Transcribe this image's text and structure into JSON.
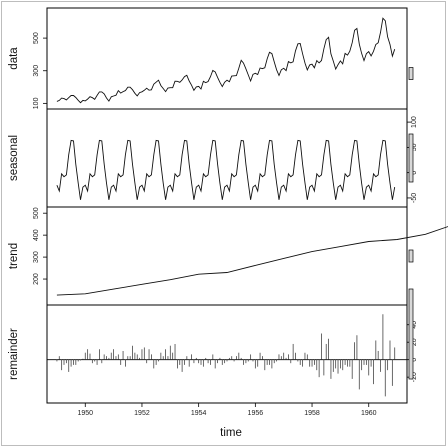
{
  "chart_data": {
    "type": "line",
    "title": "",
    "xlabel": "time",
    "x_ticks": [
      "1950",
      "1952",
      "1954",
      "1956",
      "1958",
      "1960"
    ],
    "x_range": [
      1949,
      1961
    ],
    "panels": [
      {
        "key": "data",
        "label": "data",
        "ticks": [
          "100",
          "300",
          "500"
        ],
        "tick_side": "left",
        "ylim": [
          90,
          660
        ],
        "start": 1949,
        "step_per_year": 12,
        "values": [
          112,
          118,
          132,
          129,
          121,
          135,
          148,
          148,
          136,
          119,
          104,
          118,
          115,
          126,
          141,
          135,
          125,
          149,
          170,
          170,
          158,
          133,
          114,
          140,
          145,
          150,
          178,
          163,
          172,
          178,
          199,
          199,
          184,
          162,
          146,
          166,
          171,
          180,
          193,
          181,
          183,
          218,
          230,
          242,
          209,
          191,
          172,
          194,
          196,
          196,
          236,
          235,
          229,
          243,
          264,
          272,
          237,
          211,
          180,
          201,
          204,
          188,
          235,
          227,
          234,
          264,
          302,
          293,
          259,
          229,
          203,
          229,
          242,
          233,
          267,
          269,
          270,
          315,
          364,
          347,
          312,
          274,
          237,
          278,
          284,
          277,
          317,
          313,
          318,
          374,
          413,
          405,
          355,
          306,
          271,
          306,
          315,
          301,
          356,
          348,
          355,
          422,
          465,
          467,
          404,
          347,
          305,
          336,
          340,
          318,
          362,
          348,
          363,
          435,
          491,
          505,
          404,
          359,
          310,
          337,
          360,
          342,
          406,
          396,
          420,
          472,
          548,
          559,
          463,
          407,
          362,
          405,
          417,
          391,
          419,
          461,
          472,
          535,
          622,
          606,
          508,
          461,
          390,
          432
        ]
      },
      {
        "key": "seasonal",
        "label": "seasonal",
        "ticks": [
          "100",
          "50",
          "0",
          "-50"
        ],
        "tick_side": "right",
        "ylim": [
          -60,
          118
        ],
        "start": 1949,
        "period": [
          -24.7,
          -36.2,
          -2.2,
          -8.0,
          -4.5,
          35.4,
          63.8,
          62.8,
          16.5,
          -20.6,
          -53.6,
          -28.6
        ],
        "cycles": 12
      },
      {
        "key": "trend",
        "label": "trend",
        "ticks": [
          "200",
          "300",
          "400",
          "500"
        ],
        "tick_side": "left",
        "ylim": [
          100,
          510
        ],
        "start": 1949,
        "step_per_year": 1,
        "values": [
          126.7,
          133,
          154,
          176,
          197,
          222,
          230,
          262,
          294,
          325,
          348,
          371,
          380,
          404,
          448,
          490,
          500
        ]
      },
      {
        "key": "remainder",
        "label": "remainder",
        "ticks": [
          "40",
          "20",
          "0",
          "-20"
        ],
        "tick_side": "right",
        "ylim": [
          -45,
          58
        ],
        "start": 1949,
        "step_per_year": 12,
        "values": [
          -2,
          4,
          -12,
          -6,
          -4,
          -14,
          -8,
          -6,
          -6,
          -2,
          -1,
          1,
          8,
          12,
          7,
          -4,
          -2,
          -6,
          12,
          -4,
          6,
          4,
          2,
          8,
          12,
          4,
          6,
          -6,
          10,
          -8,
          4,
          4,
          16,
          8,
          6,
          2,
          12,
          14,
          -4,
          12,
          6,
          -10,
          -6,
          -2,
          8,
          4,
          12,
          4,
          16,
          8,
          18,
          -10,
          -6,
          -14,
          -6,
          4,
          -8,
          6,
          -4,
          2,
          -4,
          -6,
          -8,
          2,
          -4,
          -6,
          6,
          -10,
          -4,
          2,
          -6,
          -4,
          -2,
          2,
          4,
          -2,
          4,
          8,
          2,
          -6,
          -4,
          -2,
          6,
          -2,
          -10,
          -8,
          8,
          4,
          -12,
          -6,
          -6,
          -10,
          -4,
          -2,
          6,
          4,
          8,
          2,
          6,
          -4,
          18,
          8,
          -2,
          -6,
          -8,
          8,
          6,
          -8,
          -8,
          -6,
          -12,
          -20,
          30,
          -18,
          18,
          24,
          -22,
          -14,
          -10,
          -16,
          -10,
          -12,
          -6,
          -8,
          -8,
          -22,
          20,
          28,
          -34,
          -12,
          -6,
          -6,
          -18,
          -8,
          -28,
          22,
          10,
          -14,
          52,
          -42,
          -12,
          22,
          -30,
          14
        ]
      }
    ]
  }
}
